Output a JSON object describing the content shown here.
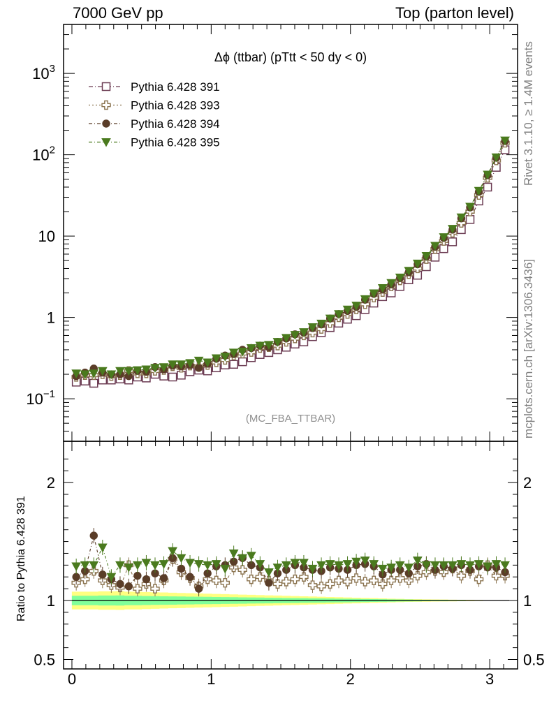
{
  "header": {
    "left": "7000 GeV pp",
    "right": "Top (parton level)"
  },
  "side": {
    "rivet": "Rivet 3.1.10, ≥ 1.4M events",
    "mcplots": "mcplots.cern.ch [arXiv:1306.3436]"
  },
  "chart_data": [
    {
      "type": "scatter",
      "title": "Δϕ (ttbar) (pTtt < 50 dy < 0)",
      "watermark": "(MC_FBA_TTBAR)",
      "yscale": "log",
      "xlim": [
        -0.06,
        3.2
      ],
      "ylim": [
        0.03,
        4000
      ],
      "xticks": [
        "0",
        "1",
        "2",
        "3"
      ],
      "yticks": [
        "10⁻¹",
        "1",
        "10",
        "10²",
        "10³"
      ],
      "legend_position": "top-left",
      "x": [
        0.031,
        0.094,
        0.157,
        0.22,
        0.283,
        0.346,
        0.408,
        0.471,
        0.534,
        0.597,
        0.66,
        0.723,
        0.785,
        0.848,
        0.911,
        0.974,
        1.037,
        1.1,
        1.162,
        1.225,
        1.288,
        1.351,
        1.414,
        1.477,
        1.539,
        1.602,
        1.665,
        1.728,
        1.791,
        1.854,
        1.916,
        1.979,
        2.042,
        2.105,
        2.168,
        2.231,
        2.293,
        2.356,
        2.419,
        2.482,
        2.545,
        2.608,
        2.67,
        2.733,
        2.796,
        2.859,
        2.922,
        2.985,
        3.047,
        3.11
      ],
      "series": [
        {
          "name": "Pythia 6.428 391",
          "color": "#6b3b52",
          "marker": "square-open",
          "values": [
            0.16,
            0.165,
            0.155,
            0.17,
            0.17,
            0.175,
            0.17,
            0.185,
            0.18,
            0.2,
            0.19,
            0.185,
            0.195,
            0.215,
            0.225,
            0.22,
            0.24,
            0.26,
            0.265,
            0.285,
            0.32,
            0.35,
            0.37,
            0.4,
            0.43,
            0.47,
            0.5,
            0.58,
            0.65,
            0.75,
            0.85,
            0.95,
            1.05,
            1.25,
            1.5,
            1.8,
            2.0,
            2.4,
            2.9,
            3.3,
            4.2,
            5.5,
            7.0,
            8.5,
            12,
            16,
            27,
            40,
            70,
            115
          ]
        },
        {
          "name": "Pythia 6.428 393",
          "color": "#8b7450",
          "marker": "cross-open",
          "values": [
            0.185,
            0.195,
            0.195,
            0.2,
            0.19,
            0.195,
            0.22,
            0.205,
            0.205,
            0.22,
            0.225,
            0.25,
            0.24,
            0.255,
            0.25,
            0.26,
            0.28,
            0.3,
            0.34,
            0.36,
            0.375,
            0.42,
            0.43,
            0.45,
            0.5,
            0.55,
            0.6,
            0.65,
            0.72,
            0.85,
            1.0,
            1.1,
            1.25,
            1.45,
            1.75,
            2.05,
            2.4,
            2.85,
            3.4,
            4.0,
            5.2,
            6.9,
            8.7,
            11,
            14.5,
            20,
            32,
            52,
            85,
            140
          ]
        },
        {
          "name": "Pythia 6.428 394",
          "color": "#5a3d28",
          "marker": "circle-filled",
          "values": [
            0.19,
            0.21,
            0.235,
            0.21,
            0.2,
            0.2,
            0.19,
            0.22,
            0.215,
            0.245,
            0.23,
            0.255,
            0.25,
            0.26,
            0.24,
            0.27,
            0.31,
            0.34,
            0.355,
            0.4,
            0.42,
            0.45,
            0.43,
            0.5,
            0.55,
            0.62,
            0.65,
            0.74,
            0.82,
            0.97,
            1.1,
            1.2,
            1.35,
            1.65,
            1.95,
            2.2,
            2.55,
            3.05,
            3.6,
            4.5,
            5.6,
            7.4,
            9.5,
            12,
            16.5,
            22.5,
            35,
            56,
            92,
            148
          ]
        },
        {
          "name": "Pythia 6.428 395",
          "color": "#4a7a1e",
          "marker": "triangle-down-filled",
          "values": [
            0.205,
            0.2,
            0.205,
            0.22,
            0.2,
            0.22,
            0.22,
            0.225,
            0.23,
            0.24,
            0.245,
            0.265,
            0.265,
            0.275,
            0.295,
            0.28,
            0.315,
            0.33,
            0.37,
            0.38,
            0.42,
            0.45,
            0.46,
            0.5,
            0.56,
            0.61,
            0.66,
            0.76,
            0.84,
            0.97,
            1.1,
            1.25,
            1.4,
            1.68,
            1.98,
            2.3,
            2.65,
            3.1,
            3.75,
            4.6,
            5.7,
            7.6,
            9.7,
            12.3,
            17,
            23,
            36,
            57,
            93,
            150
          ]
        }
      ]
    },
    {
      "type": "scatter",
      "ylabel": "Ratio to Pythia 6.428 391",
      "ylim": [
        0.42,
        2.35
      ],
      "yticks": [
        "0.5",
        "1",
        "2"
      ],
      "xticks": [
        "0",
        "1",
        "2",
        "3"
      ],
      "band_outer_color": "#ffff80",
      "band_inner_color": "#80ff9a",
      "band_outer_halfwidth": [
        0.075,
        0.075,
        0.075,
        0.078,
        0.078,
        0.08,
        0.075,
        0.075,
        0.072,
        0.07,
        0.068,
        0.066,
        0.064,
        0.062,
        0.06,
        0.058,
        0.056,
        0.054,
        0.052,
        0.05,
        0.048,
        0.046,
        0.044,
        0.042,
        0.04,
        0.038,
        0.036,
        0.034,
        0.032,
        0.03,
        0.028,
        0.026,
        0.024,
        0.022,
        0.02,
        0.018,
        0.016,
        0.014,
        0.012,
        0.011,
        0.01,
        0.009,
        0.008,
        0.007,
        0.006,
        0.005,
        0.004,
        0.003,
        0.003,
        0.002
      ],
      "band_inner_halfwidth": [
        0.04,
        0.04,
        0.04,
        0.042,
        0.042,
        0.043,
        0.04,
        0.04,
        0.038,
        0.037,
        0.036,
        0.035,
        0.034,
        0.033,
        0.032,
        0.031,
        0.03,
        0.029,
        0.028,
        0.027,
        0.026,
        0.025,
        0.024,
        0.023,
        0.022,
        0.021,
        0.02,
        0.019,
        0.018,
        0.017,
        0.016,
        0.015,
        0.014,
        0.013,
        0.012,
        0.011,
        0.01,
        0.009,
        0.008,
        0.007,
        0.006,
        0.005,
        0.005,
        0.004,
        0.004,
        0.003,
        0.003,
        0.002,
        0.002,
        0.001
      ],
      "series": [
        {
          "name": "Pythia 6.428 393",
          "values": [
            1.15,
            1.18,
            1.25,
            1.17,
            1.13,
            1.11,
            1.3,
            1.1,
            1.14,
            1.1,
            1.17,
            1.35,
            1.24,
            1.19,
            1.12,
            1.18,
            1.17,
            1.15,
            1.28,
            1.26,
            1.18,
            1.2,
            1.17,
            1.14,
            1.16,
            1.18,
            1.2,
            1.13,
            1.12,
            1.14,
            1.17,
            1.16,
            1.19,
            1.16,
            1.17,
            1.14,
            1.17,
            1.19,
            1.17,
            1.21,
            1.24,
            1.25,
            1.24,
            1.27,
            1.21,
            1.25,
            1.18,
            1.3,
            1.21,
            1.21
          ]
        },
        {
          "name": "Pythia 6.428 394",
          "values": [
            1.2,
            1.25,
            1.55,
            1.22,
            1.18,
            1.14,
            1.12,
            1.21,
            1.18,
            1.23,
            1.19,
            1.36,
            1.27,
            1.2,
            1.1,
            1.23,
            1.29,
            1.3,
            1.33,
            1.36,
            1.3,
            1.28,
            1.15,
            1.23,
            1.26,
            1.3,
            1.28,
            1.26,
            1.25,
            1.28,
            1.27,
            1.26,
            1.3,
            1.31,
            1.29,
            1.22,
            1.26,
            1.26,
            1.23,
            1.29,
            1.31,
            1.26,
            1.29,
            1.27,
            1.3,
            1.26,
            1.29,
            1.28,
            1.28,
            1.24
          ]
        },
        {
          "name": "Pythia 6.428 395",
          "values": [
            1.29,
            1.3,
            1.3,
            1.45,
            1.2,
            1.3,
            1.28,
            1.3,
            1.32,
            1.3,
            1.31,
            1.42,
            1.36,
            1.32,
            1.31,
            1.3,
            1.31,
            1.27,
            1.4,
            1.36,
            1.38,
            1.31,
            1.24,
            1.28,
            1.3,
            1.32,
            1.32,
            1.27,
            1.3,
            1.31,
            1.3,
            1.31,
            1.33,
            1.34,
            1.31,
            1.27,
            1.28,
            1.3,
            1.28,
            1.34,
            1.3,
            1.3,
            1.3,
            1.3,
            1.31,
            1.3,
            1.31,
            1.29,
            1.31,
            1.3
          ]
        }
      ]
    }
  ]
}
